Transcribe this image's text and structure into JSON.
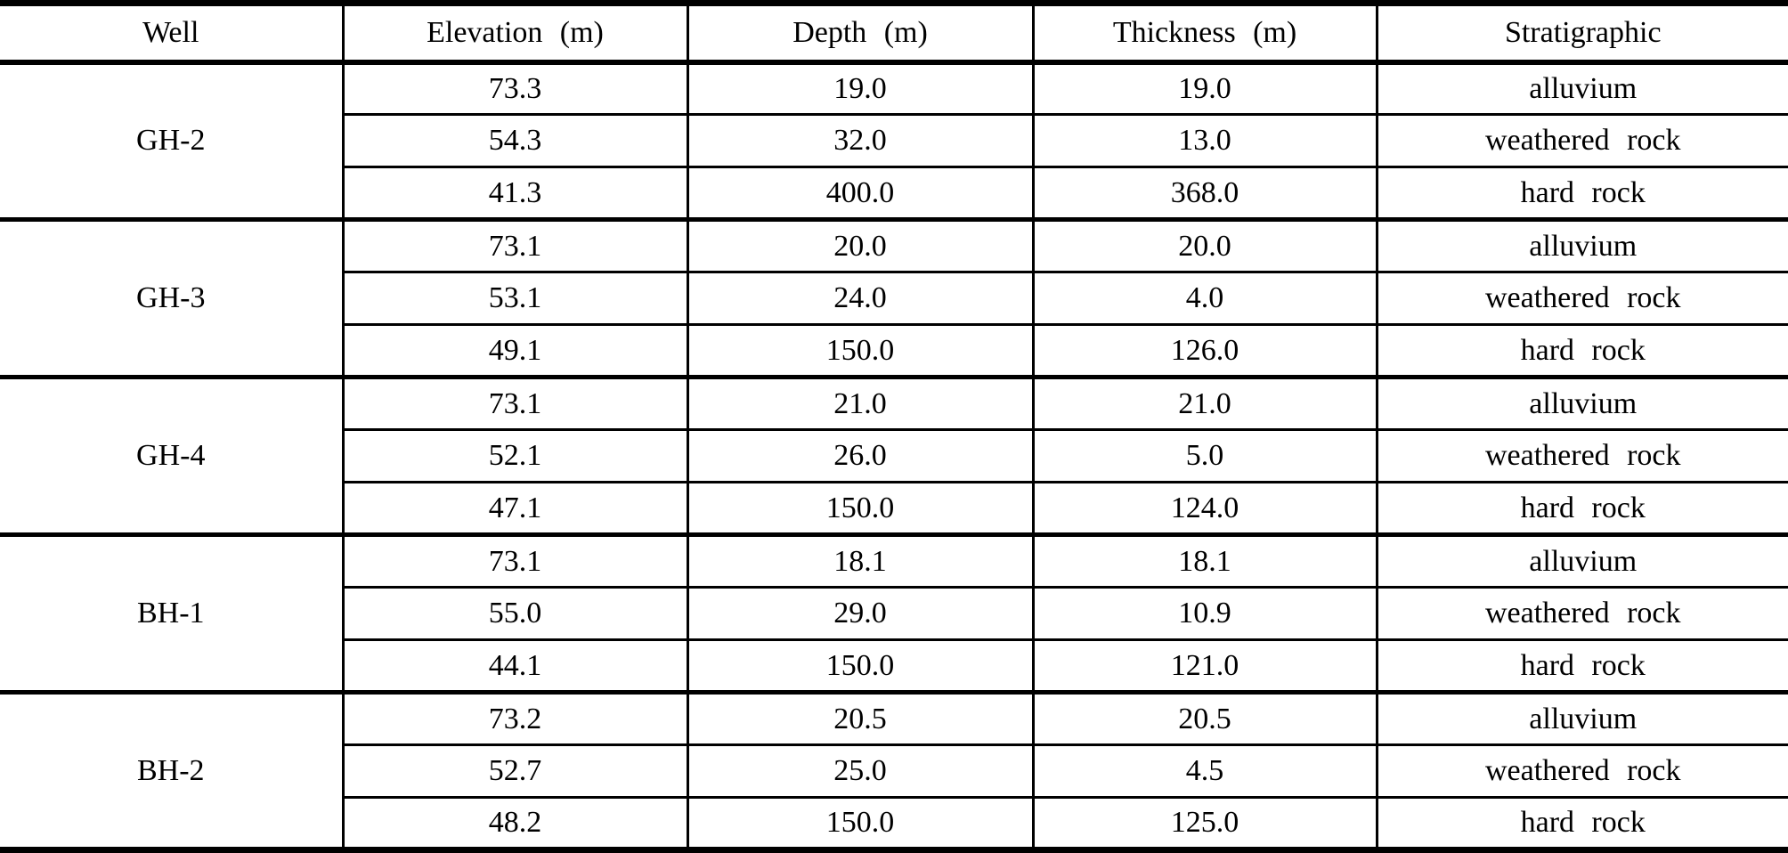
{
  "page": {
    "background": "#ffffff",
    "line_color": "#000000",
    "text_color": "#000000"
  },
  "table": {
    "columns": [
      "Well",
      "Elevation (m)",
      "Depth (m)",
      "Thickness (m)",
      "Stratigraphic"
    ],
    "groups": [
      {
        "well": "GH-2",
        "rows": [
          {
            "elevation": "73.3",
            "depth": "19.0",
            "thickness": "19.0",
            "stratigraphic": "alluvium"
          },
          {
            "elevation": "54.3",
            "depth": "32.0",
            "thickness": "13.0",
            "stratigraphic": "weathered rock"
          },
          {
            "elevation": "41.3",
            "depth": "400.0",
            "thickness": "368.0",
            "stratigraphic": "hard rock"
          }
        ]
      },
      {
        "well": "GH-3",
        "rows": [
          {
            "elevation": "73.1",
            "depth": "20.0",
            "thickness": "20.0",
            "stratigraphic": "alluvium"
          },
          {
            "elevation": "53.1",
            "depth": "24.0",
            "thickness": "4.0",
            "stratigraphic": "weathered rock"
          },
          {
            "elevation": "49.1",
            "depth": "150.0",
            "thickness": "126.0",
            "stratigraphic": "hard rock"
          }
        ]
      },
      {
        "well": "GH-4",
        "rows": [
          {
            "elevation": "73.1",
            "depth": "21.0",
            "thickness": "21.0",
            "stratigraphic": "alluvium"
          },
          {
            "elevation": "52.1",
            "depth": "26.0",
            "thickness": "5.0",
            "stratigraphic": "weathered rock"
          },
          {
            "elevation": "47.1",
            "depth": "150.0",
            "thickness": "124.0",
            "stratigraphic": "hard rock"
          }
        ]
      },
      {
        "well": "BH-1",
        "rows": [
          {
            "elevation": "73.1",
            "depth": "18.1",
            "thickness": "18.1",
            "stratigraphic": "alluvium"
          },
          {
            "elevation": "55.0",
            "depth": "29.0",
            "thickness": "10.9",
            "stratigraphic": "weathered rock"
          },
          {
            "elevation": "44.1",
            "depth": "150.0",
            "thickness": "121.0",
            "stratigraphic": "hard rock"
          }
        ]
      },
      {
        "well": "BH-2",
        "rows": [
          {
            "elevation": "73.2",
            "depth": "20.5",
            "thickness": "20.5",
            "stratigraphic": "alluvium"
          },
          {
            "elevation": "52.7",
            "depth": "25.0",
            "thickness": "4.5",
            "stratigraphic": "weathered rock"
          },
          {
            "elevation": "48.2",
            "depth": "150.0",
            "thickness": "125.0",
            "stratigraphic": "hard rock"
          }
        ]
      }
    ]
  }
}
